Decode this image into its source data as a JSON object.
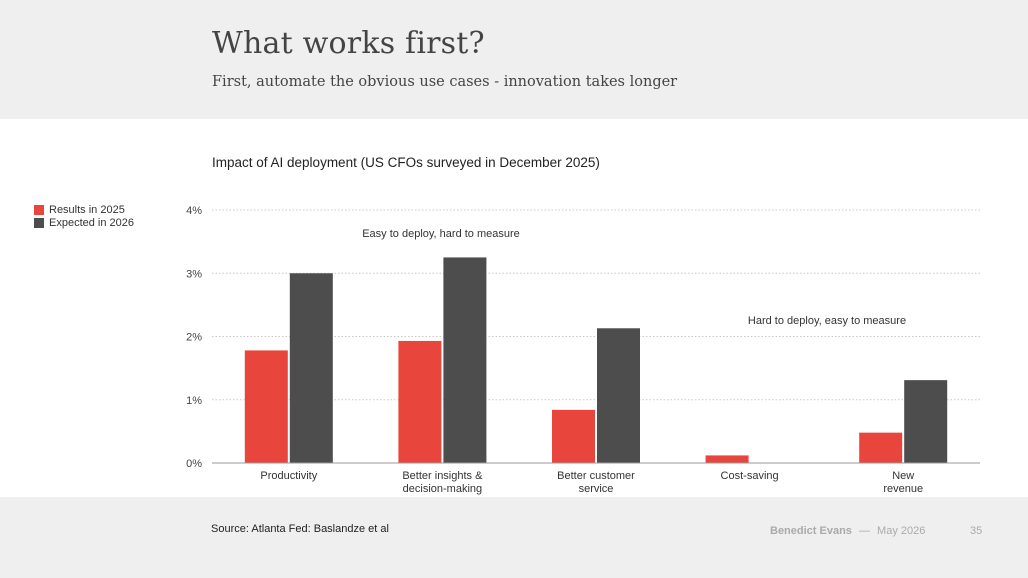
{
  "slide": {
    "title": "What works first?",
    "subtitle": "First, automate the obvious use cases - innovation takes longer"
  },
  "chart_data": {
    "type": "bar",
    "title": "Impact of AI deployment (US CFOs surveyed in December 2025)",
    "categories": [
      "Productivity",
      "Better insights &\ndecision-making",
      "Better customer\nservice",
      "Cost-saving",
      "New\nrevenue"
    ],
    "series": [
      {
        "name": "Results in 2025",
        "color": "#e8453c",
        "values": [
          1.78,
          1.93,
          0.84,
          0.12,
          0.48
        ]
      },
      {
        "name": "Expected in 2026",
        "color": "#4d4d4d",
        "values": [
          3.0,
          3.25,
          2.13,
          null,
          1.31
        ]
      }
    ],
    "yticks": [
      "0%",
      "1%",
      "2%",
      "3%",
      "4%"
    ],
    "ylim": [
      0,
      4
    ],
    "grid": true,
    "legend_position": "left",
    "annotations": [
      "Easy to deploy, hard to measure",
      "Hard to deploy, easy to measure"
    ]
  },
  "footer": {
    "source": "Source: Atlanta Fed: Baslandze et al",
    "author": "Benedict Evans",
    "separator": "—",
    "date": "May 2026",
    "page_number": "35"
  }
}
